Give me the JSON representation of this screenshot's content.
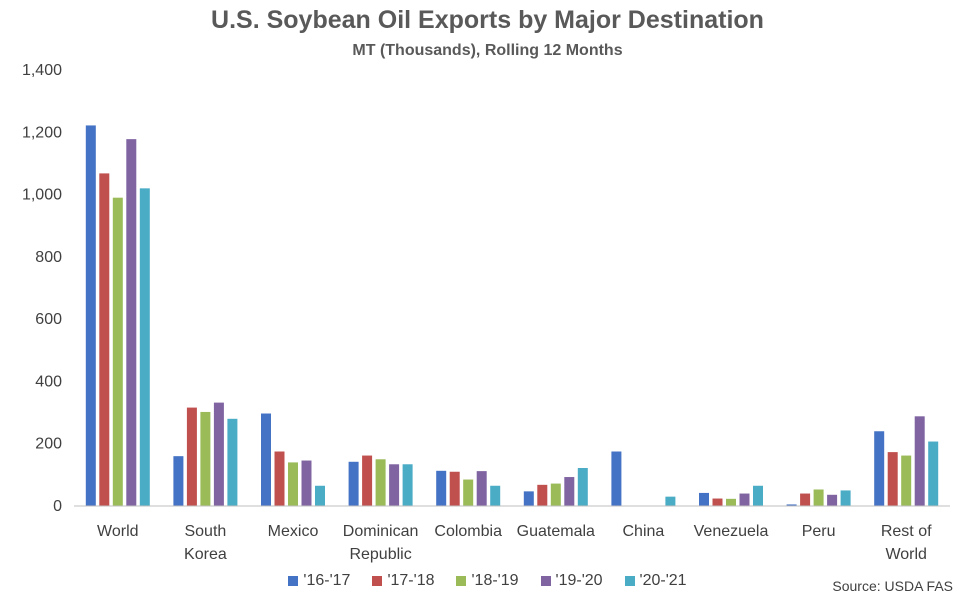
{
  "chart_data": {
    "type": "bar",
    "title": "U.S. Soybean Oil Exports by Major Destination",
    "subtitle": "MT (Thousands), Rolling 12 Months",
    "source": "Source: USDA FAS",
    "categories": [
      "World",
      "South Korea",
      "Mexico",
      "Dominican Republic",
      "Colombia",
      "Guatemala",
      "China",
      "Venezuela",
      "Peru",
      "Rest of World"
    ],
    "category_lines": [
      [
        "World"
      ],
      [
        "South",
        "Korea"
      ],
      [
        "Mexico"
      ],
      [
        "Dominican",
        "Republic"
      ],
      [
        "Colombia"
      ],
      [
        "Guatemala"
      ],
      [
        "China"
      ],
      [
        "Venezuela"
      ],
      [
        "Peru"
      ],
      [
        "Rest of",
        "World"
      ]
    ],
    "series": [
      {
        "name": "'16-'17",
        "color": "#4472C4",
        "values": [
          1222,
          160,
          297,
          142,
          113,
          47,
          175,
          42,
          5,
          240
        ]
      },
      {
        "name": "'17-'18",
        "color": "#C0504D",
        "values": [
          1068,
          316,
          175,
          162,
          110,
          68,
          0,
          24,
          40,
          173
        ]
      },
      {
        "name": "'18-'19",
        "color": "#9BBB59",
        "values": [
          990,
          302,
          140,
          150,
          85,
          72,
          0,
          23,
          53,
          162
        ]
      },
      {
        "name": "'19-'20",
        "color": "#8064A2",
        "values": [
          1178,
          332,
          146,
          134,
          112,
          93,
          0,
          40,
          36,
          288
        ]
      },
      {
        "name": "'20-'21",
        "color": "#4BACC6",
        "values": [
          1020,
          280,
          65,
          134,
          65,
          122,
          30,
          65,
          50,
          207
        ]
      }
    ],
    "ylim": [
      0,
      1400
    ],
    "yticks": [
      0,
      200,
      400,
      600,
      800,
      1000,
      1200,
      1400
    ],
    "ytick_labels": [
      "0",
      "200",
      "400",
      "600",
      "800",
      "1,000",
      "1,200",
      "1,400"
    ],
    "grid": false,
    "legend_position": "bottom"
  }
}
